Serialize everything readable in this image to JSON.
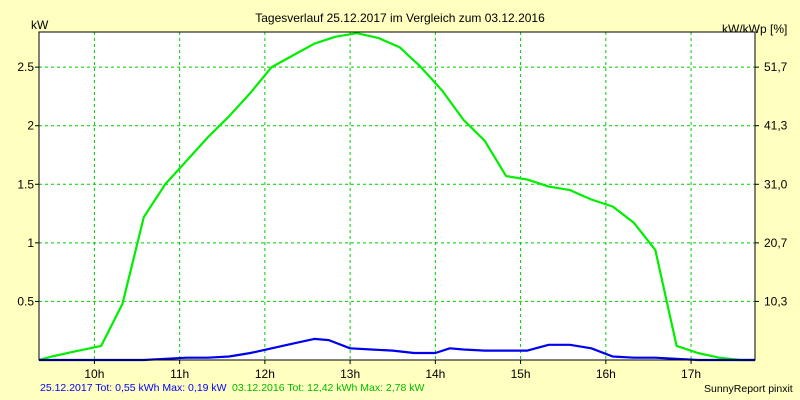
{
  "chart_data": {
    "type": "line",
    "title": "Tagesverlauf 25.12.2017 im Vergleich zum 03.12.2016",
    "ylabel": "kW",
    "ylabel_right": "kW/kWp [%]",
    "x_range": [
      9.35,
      17.75
    ],
    "ylim": [
      0,
      2.8
    ],
    "x_ticks": [
      {
        "value": 10,
        "label": "10h"
      },
      {
        "value": 11,
        "label": "11h"
      },
      {
        "value": 12,
        "label": "12h"
      },
      {
        "value": 13,
        "label": "13h"
      },
      {
        "value": 14,
        "label": "14h"
      },
      {
        "value": 15,
        "label": "15h"
      },
      {
        "value": 16,
        "label": "16h"
      },
      {
        "value": 17,
        "label": "17h"
      }
    ],
    "y_ticks": [
      {
        "value": 0.5,
        "label": "0.5"
      },
      {
        "value": 1,
        "label": "1"
      },
      {
        "value": 1.5,
        "label": "1.5"
      },
      {
        "value": 2,
        "label": "2"
      },
      {
        "value": 2.5,
        "label": "2.5"
      }
    ],
    "y_ticks_right": [
      {
        "value": 0.5,
        "label": "10,3"
      },
      {
        "value": 1,
        "label": "20,7"
      },
      {
        "value": 1.5,
        "label": "31,0"
      },
      {
        "value": 2,
        "label": "41,3"
      },
      {
        "value": 2.5,
        "label": "51,7"
      }
    ],
    "grid": true,
    "series": [
      {
        "name": "03.12.2016",
        "color": "#00ee00",
        "points": [
          [
            9.35,
            0.0
          ],
          [
            9.5,
            0.03
          ],
          [
            9.75,
            0.07
          ],
          [
            10.08,
            0.12
          ],
          [
            10.33,
            0.48
          ],
          [
            10.58,
            1.22
          ],
          [
            10.83,
            1.5
          ],
          [
            11.08,
            1.7
          ],
          [
            11.33,
            1.9
          ],
          [
            11.58,
            2.08
          ],
          [
            11.83,
            2.28
          ],
          [
            12.08,
            2.5
          ],
          [
            12.33,
            2.6
          ],
          [
            12.58,
            2.7
          ],
          [
            12.83,
            2.76
          ],
          [
            13.08,
            2.79
          ],
          [
            13.33,
            2.75
          ],
          [
            13.58,
            2.67
          ],
          [
            13.83,
            2.5
          ],
          [
            14.08,
            2.3
          ],
          [
            14.33,
            2.05
          ],
          [
            14.58,
            1.87
          ],
          [
            14.83,
            1.57
          ],
          [
            15.08,
            1.54
          ],
          [
            15.33,
            1.48
          ],
          [
            15.58,
            1.45
          ],
          [
            15.83,
            1.37
          ],
          [
            16.08,
            1.31
          ],
          [
            16.33,
            1.17
          ],
          [
            16.58,
            0.94
          ],
          [
            16.83,
            0.12
          ],
          [
            17.08,
            0.06
          ],
          [
            17.33,
            0.02
          ],
          [
            17.58,
            0.0
          ],
          [
            17.75,
            0.0
          ]
        ]
      },
      {
        "name": "25.12.2017",
        "color": "#0000ee",
        "points": [
          [
            9.35,
            0.0
          ],
          [
            10.58,
            0.0
          ],
          [
            10.83,
            0.01
          ],
          [
            11.08,
            0.02
          ],
          [
            11.33,
            0.02
          ],
          [
            11.58,
            0.03
          ],
          [
            11.83,
            0.06
          ],
          [
            12.08,
            0.1
          ],
          [
            12.33,
            0.14
          ],
          [
            12.58,
            0.18
          ],
          [
            12.75,
            0.17
          ],
          [
            13.0,
            0.1
          ],
          [
            13.25,
            0.09
          ],
          [
            13.5,
            0.08
          ],
          [
            13.75,
            0.06
          ],
          [
            14.0,
            0.06
          ],
          [
            14.17,
            0.1
          ],
          [
            14.33,
            0.09
          ],
          [
            14.58,
            0.08
          ],
          [
            14.83,
            0.08
          ],
          [
            15.08,
            0.08
          ],
          [
            15.33,
            0.13
          ],
          [
            15.58,
            0.13
          ],
          [
            15.83,
            0.1
          ],
          [
            16.08,
            0.03
          ],
          [
            16.33,
            0.02
          ],
          [
            16.58,
            0.02
          ],
          [
            16.83,
            0.01
          ],
          [
            17.08,
            0.0
          ],
          [
            17.75,
            0.0
          ]
        ]
      }
    ]
  },
  "footer": {
    "blue_text": "25.12.2017 Tot: 0,55 kWh Max: 0,19 kW",
    "green_text": "03.12.2016 Tot: 12,42 kWh Max: 2,78 kW",
    "blue_color": "#0000ff",
    "green_color": "#00bb00"
  },
  "credit": "SunnyReport pinxit",
  "colors": {
    "background": "#ffffc0",
    "plot_background": "#ffffff",
    "grid": "#00cc00"
  }
}
